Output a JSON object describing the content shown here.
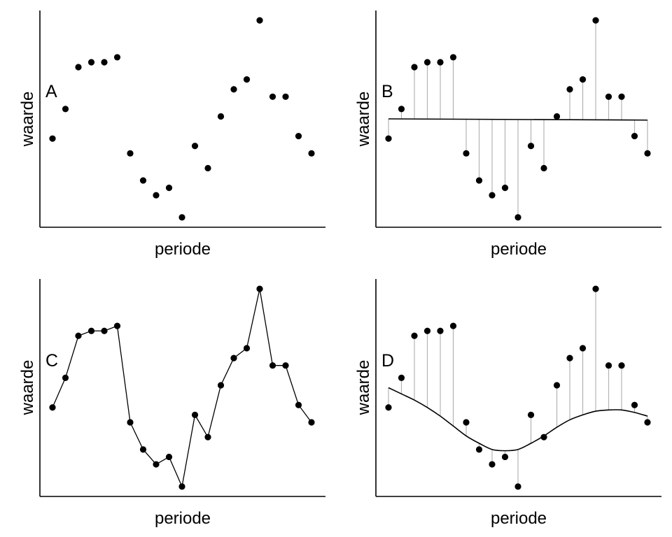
{
  "chart_data": [
    {
      "type": "scatter",
      "panel": "A",
      "xlabel": "periode",
      "ylabel": "waarde",
      "values": [
        4.2,
        5.4,
        7.1,
        7.3,
        7.3,
        7.5,
        3.6,
        2.5,
        1.9,
        2.2,
        1.0,
        3.9,
        3.0,
        5.1,
        6.2,
        6.6,
        9.0,
        5.9,
        5.9,
        4.3,
        3.6
      ],
      "ylim": [
        0.6,
        9.4
      ],
      "grid": false
    },
    {
      "type": "scatter",
      "panel": "B",
      "xlabel": "periode",
      "ylabel": "waarde",
      "values": [
        4.2,
        5.4,
        7.1,
        7.3,
        7.3,
        7.5,
        3.6,
        2.5,
        1.9,
        2.2,
        1.0,
        3.9,
        3.0,
        5.1,
        6.2,
        6.6,
        9.0,
        5.9,
        5.9,
        4.3,
        3.6
      ],
      "fit": "linear",
      "fit_values": [
        5.0,
        4.95
      ],
      "ylim": [
        0.6,
        9.4
      ],
      "grid": false
    },
    {
      "type": "line",
      "panel": "C",
      "xlabel": "periode",
      "ylabel": "waarde",
      "values": [
        4.2,
        5.4,
        7.1,
        7.3,
        7.3,
        7.5,
        3.6,
        2.5,
        1.9,
        2.2,
        1.0,
        3.9,
        3.0,
        5.1,
        6.2,
        6.6,
        9.0,
        5.9,
        5.9,
        4.3,
        3.6
      ],
      "ylim": [
        0.6,
        9.4
      ],
      "grid": false
    },
    {
      "type": "scatter",
      "panel": "D",
      "xlabel": "periode",
      "ylabel": "waarde",
      "values": [
        4.2,
        5.4,
        7.1,
        7.3,
        7.3,
        7.5,
        3.6,
        2.5,
        1.9,
        2.2,
        1.0,
        3.9,
        3.0,
        5.1,
        6.2,
        6.6,
        9.0,
        5.9,
        5.9,
        4.3,
        3.6
      ],
      "fit": "smooth",
      "fit_values": [
        5.0,
        4.75,
        4.5,
        4.2,
        3.85,
        3.45,
        3.05,
        2.75,
        2.5,
        2.45,
        2.5,
        2.75,
        3.05,
        3.4,
        3.7,
        3.9,
        4.05,
        4.1,
        4.1,
        4.0,
        3.85
      ],
      "ylim": [
        0.6,
        9.4
      ],
      "grid": false
    }
  ]
}
